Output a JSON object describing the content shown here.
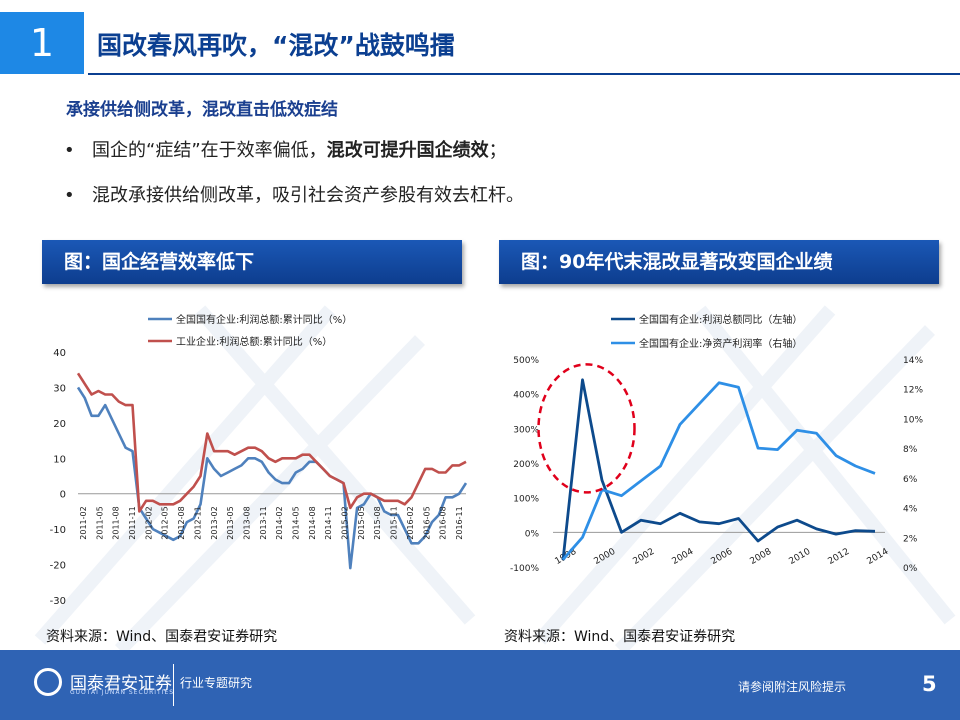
{
  "header": {
    "number": "1",
    "title": "国改春风再吹，“混改”战鼓鸣擂"
  },
  "subtitle": "承接供给侧改革，混改直击低效症结",
  "bullets": [
    {
      "dot": "•",
      "text": "国企的“症结”在于效率偏低，",
      "bold": "混改可提升国企绩效",
      "tail": "；"
    },
    {
      "dot": "•",
      "text": "混改承接供给侧改革，吸引社会资产参股有效去杠杆。"
    }
  ],
  "left_panel": {
    "heading": "图：国企经营效率低下",
    "source": "资料来源：Wind、国泰君安证券研究"
  },
  "right_panel": {
    "heading": "图：90年代末混改显著改变国企业绩",
    "source": "资料来源：Wind、国泰君安证券研究"
  },
  "footer": {
    "logo_text": "国泰君安证券",
    "logo_sub": "GUOTAI JUNAN SECURITIES",
    "dept": "行业专题研究",
    "risk_note": "请参阅附注风险提示",
    "page": "5"
  },
  "colors": {
    "accent": "#1E88E5",
    "title_blue": "#0b3f91",
    "footer": "#2f63b4",
    "highlight_circle": "#e0001b"
  },
  "chart_data": [
    {
      "type": "line",
      "ylim": [
        -30,
        40
      ],
      "yticks": [
        40,
        30,
        20,
        10,
        0,
        -10,
        -20,
        -30
      ],
      "xtick_labels": [
        "2011-02",
        "2011-05",
        "2011-08",
        "2011-11",
        "2012-02",
        "2012-05",
        "2012-08",
        "2012-11",
        "2013-02",
        "2013-05",
        "2013-08",
        "2013-11",
        "2014-02",
        "2014-05",
        "2014-08",
        "2014-11",
        "2015-02",
        "2015-05",
        "2015-08",
        "2015-11",
        "2016-02",
        "2016-05",
        "2016-08",
        "2016-11"
      ],
      "series": [
        {
          "name": "全国国有企业:利润总额:累计同比（%）",
          "color": "#4f81bd",
          "values": [
            30,
            27,
            22,
            22,
            25,
            21,
            17,
            13,
            12,
            -4,
            -7,
            -10,
            -11,
            -12,
            -13,
            -12,
            -8,
            -7,
            -3,
            10,
            7,
            5,
            6,
            7,
            8,
            10,
            10,
            9,
            6,
            4,
            3,
            3,
            6,
            7,
            9,
            9,
            7,
            5,
            4,
            3,
            -21,
            -4,
            -3,
            0,
            -1,
            -5,
            -6,
            -6,
            -10,
            -14,
            -14,
            -12,
            -8,
            -6,
            -1,
            -1,
            0,
            3
          ]
        },
        {
          "name": "工业企业:利润总额:累计同比（%）",
          "color": "#c0504d",
          "values": [
            34,
            31,
            28,
            29,
            28,
            28,
            26,
            25,
            25,
            -5,
            -2,
            -2,
            -3,
            -3,
            -3,
            -2,
            0,
            2,
            5,
            17,
            12,
            12,
            12,
            11,
            12,
            13,
            13,
            12,
            10,
            9,
            10,
            10,
            10,
            11,
            11,
            9,
            7,
            5,
            4,
            3,
            -4,
            -1,
            0,
            0,
            -1,
            -2,
            -2,
            -2,
            -3,
            -1,
            3,
            7,
            7,
            6,
            6,
            8,
            8,
            9
          ]
        }
      ]
    },
    {
      "type": "line",
      "ylim": [
        -100,
        500
      ],
      "y2lim": [
        0,
        14
      ],
      "yticks": [
        "500%",
        "400%",
        "300%",
        "200%",
        "100%",
        "0%",
        "-100%"
      ],
      "y2ticks": [
        "14%",
        "12%",
        "10%",
        "8%",
        "6%",
        "4%",
        "2%",
        "0%"
      ],
      "x": [
        1998,
        1999,
        2000,
        2001,
        2002,
        2003,
        2004,
        2005,
        2006,
        2007,
        2008,
        2009,
        2010,
        2011,
        2012,
        2013,
        2014
      ],
      "xtick_labels": [
        "1998",
        "2000",
        "2002",
        "2004",
        "2006",
        "2008",
        "2010",
        "2012",
        "2014"
      ],
      "series": [
        {
          "name": "全国国有企业:利润总额同比（左轴）",
          "color": "#0d4a8c",
          "axis": "left",
          "values": [
            -80,
            440,
            150,
            0,
            35,
            25,
            55,
            30,
            25,
            40,
            -25,
            15,
            35,
            10,
            -5,
            5,
            3
          ]
        },
        {
          "name": "全国国有企业:净资产利润率（右轴）",
          "color": "#2e8fe6",
          "axis": "right",
          "values": [
            0.5,
            2.0,
            5.2,
            4.8,
            5.8,
            6.8,
            9.6,
            11.0,
            12.4,
            12.1,
            8.0,
            7.9,
            9.2,
            9.0,
            7.5,
            6.8,
            6.3
          ]
        }
      ]
    }
  ]
}
